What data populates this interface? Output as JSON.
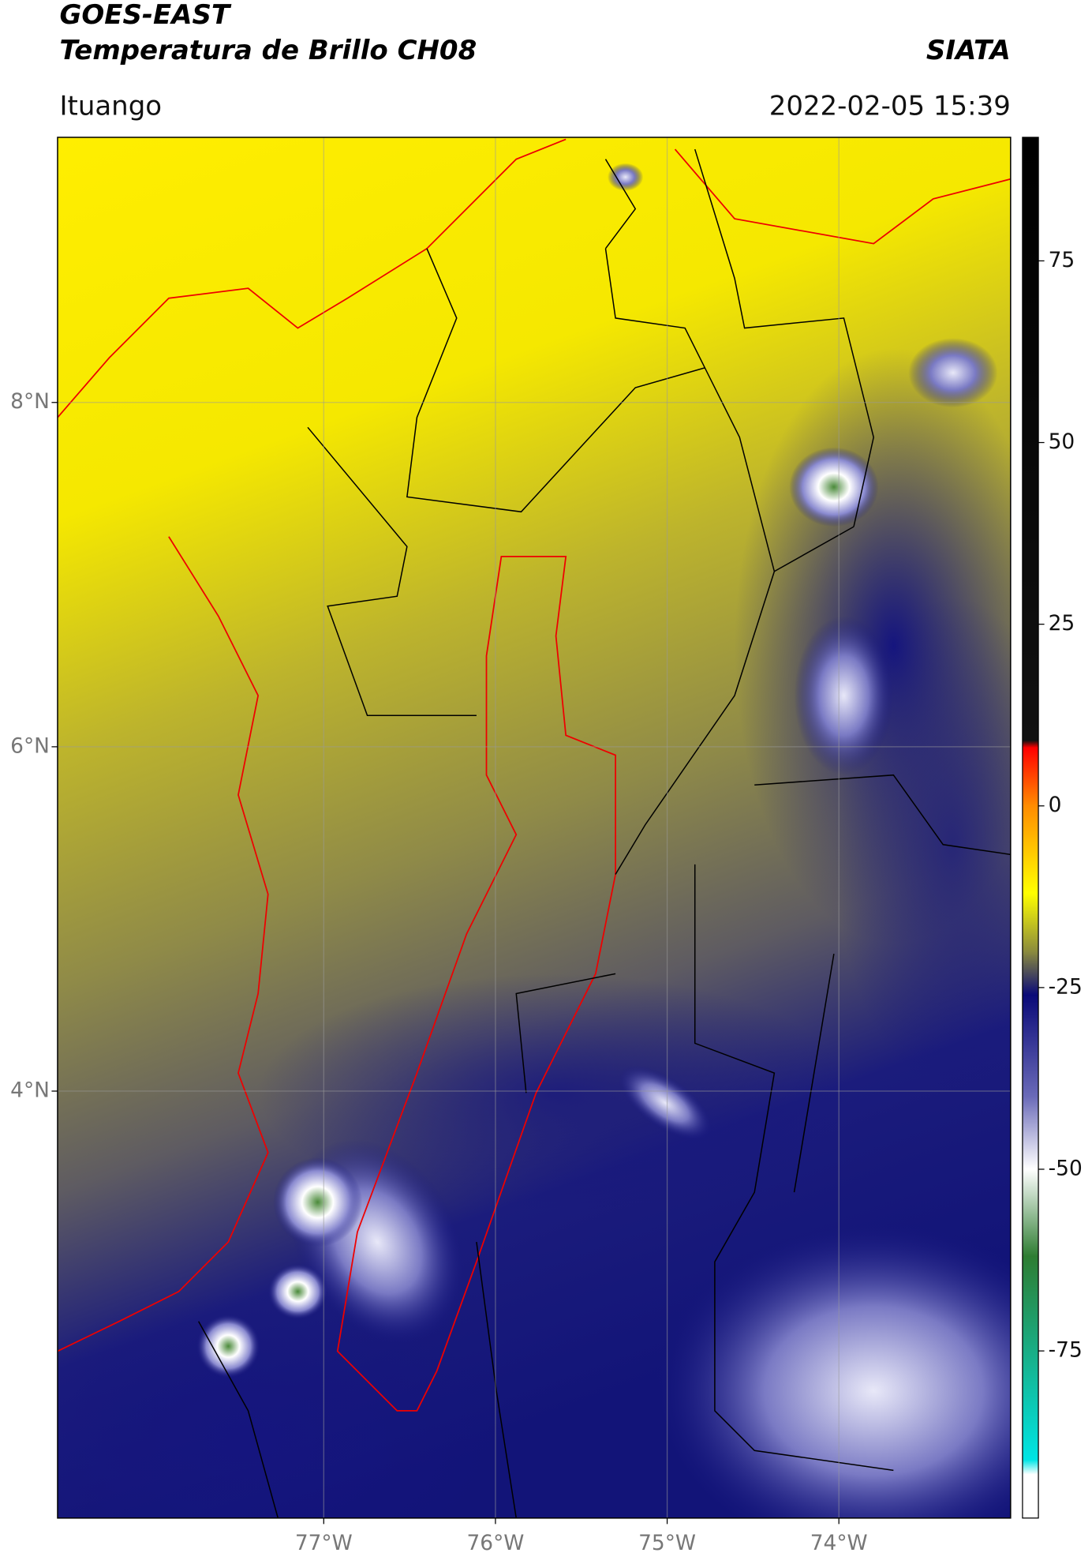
{
  "map": {
    "title": "GOES-EAST",
    "subtitle": "Temperatura de Brillo CH08",
    "source": "SIATA",
    "region": "Ituango",
    "datetime": "2022-02-05 15:39",
    "xlim": [
      -78.55,
      -73.0
    ],
    "ylim": [
      1.52,
      9.54
    ],
    "xticks": [
      {
        "value": -77,
        "label": "77°W"
      },
      {
        "value": -76,
        "label": "76°W"
      },
      {
        "value": -75,
        "label": "75°W"
      },
      {
        "value": -74,
        "label": "74°W"
      }
    ],
    "yticks": [
      {
        "value": 8,
        "label": "8°N"
      },
      {
        "value": 6,
        "label": "6°N"
      },
      {
        "value": 4,
        "label": "4°N"
      }
    ],
    "grid": true,
    "colorbar": {
      "lim": [
        -98,
        92
      ],
      "ticks": [
        75,
        50,
        25,
        0,
        -25,
        -50,
        -75
      ],
      "stops": [
        {
          "value": 92,
          "color": "#000000"
        },
        {
          "value": 9,
          "color": "#111111"
        },
        {
          "value": 8,
          "color": "#ff0000"
        },
        {
          "value": 0,
          "color": "#ff8c00"
        },
        {
          "value": -12,
          "color": "#ffff00"
        },
        {
          "value": -20,
          "color": "#8c8c3c"
        },
        {
          "value": -26,
          "color": "#0a0a78"
        },
        {
          "value": -40,
          "color": "#6a6ab8"
        },
        {
          "value": -50,
          "color": "#ffffff"
        },
        {
          "value": -62,
          "color": "#2e7d32"
        },
        {
          "value": -90,
          "color": "#00e5e5"
        },
        {
          "value": -92,
          "color": "#ffffff"
        },
        {
          "value": -98,
          "color": "#ffffff"
        }
      ]
    }
  }
}
